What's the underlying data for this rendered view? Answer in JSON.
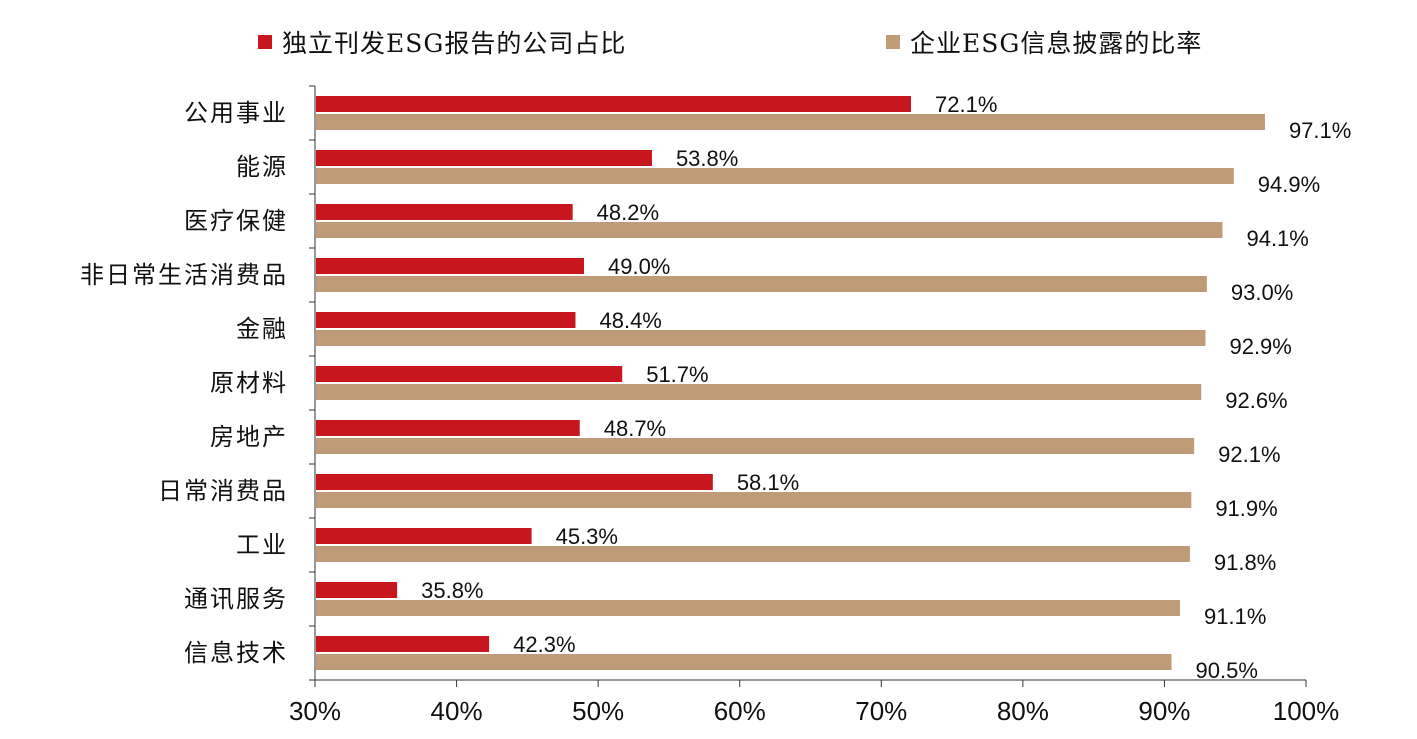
{
  "chart_data": {
    "type": "bar",
    "orientation": "horizontal",
    "categories": [
      "公用事业",
      "能源",
      "医疗保健",
      "非日常生活消费品",
      "金融",
      "原材料",
      "房地产",
      "日常消费品",
      "工业",
      "通讯服务",
      "信息技术"
    ],
    "series": [
      {
        "name": "独立刊发ESG报告的公司占比",
        "color": "#c8161e",
        "values": [
          72.1,
          53.8,
          48.2,
          49.0,
          48.4,
          51.7,
          48.7,
          58.1,
          45.3,
          35.8,
          42.3
        ],
        "labels": [
          "72.1%",
          "53.8%",
          "48.2%",
          "49.0%",
          "48.4%",
          "51.7%",
          "48.7%",
          "58.1%",
          "45.3%",
          "35.8%",
          "42.3%"
        ]
      },
      {
        "name": "企业ESG信息披露的比率",
        "color": "#bf9b77",
        "values": [
          97.1,
          94.9,
          94.1,
          93.0,
          92.9,
          92.6,
          92.1,
          91.9,
          91.8,
          91.1,
          90.5
        ],
        "labels": [
          "97.1%",
          "94.9%",
          "94.1%",
          "93.0%",
          "92.9%",
          "92.6%",
          "92.1%",
          "91.9%",
          "91.8%",
          "91.1%",
          "90.5%"
        ]
      }
    ],
    "xlim": [
      30,
      100
    ],
    "xticks": [
      "30%",
      "40%",
      "50%",
      "60%",
      "70%",
      "80%",
      "90%",
      "100%"
    ],
    "legend_position": "top",
    "grid": false
  }
}
